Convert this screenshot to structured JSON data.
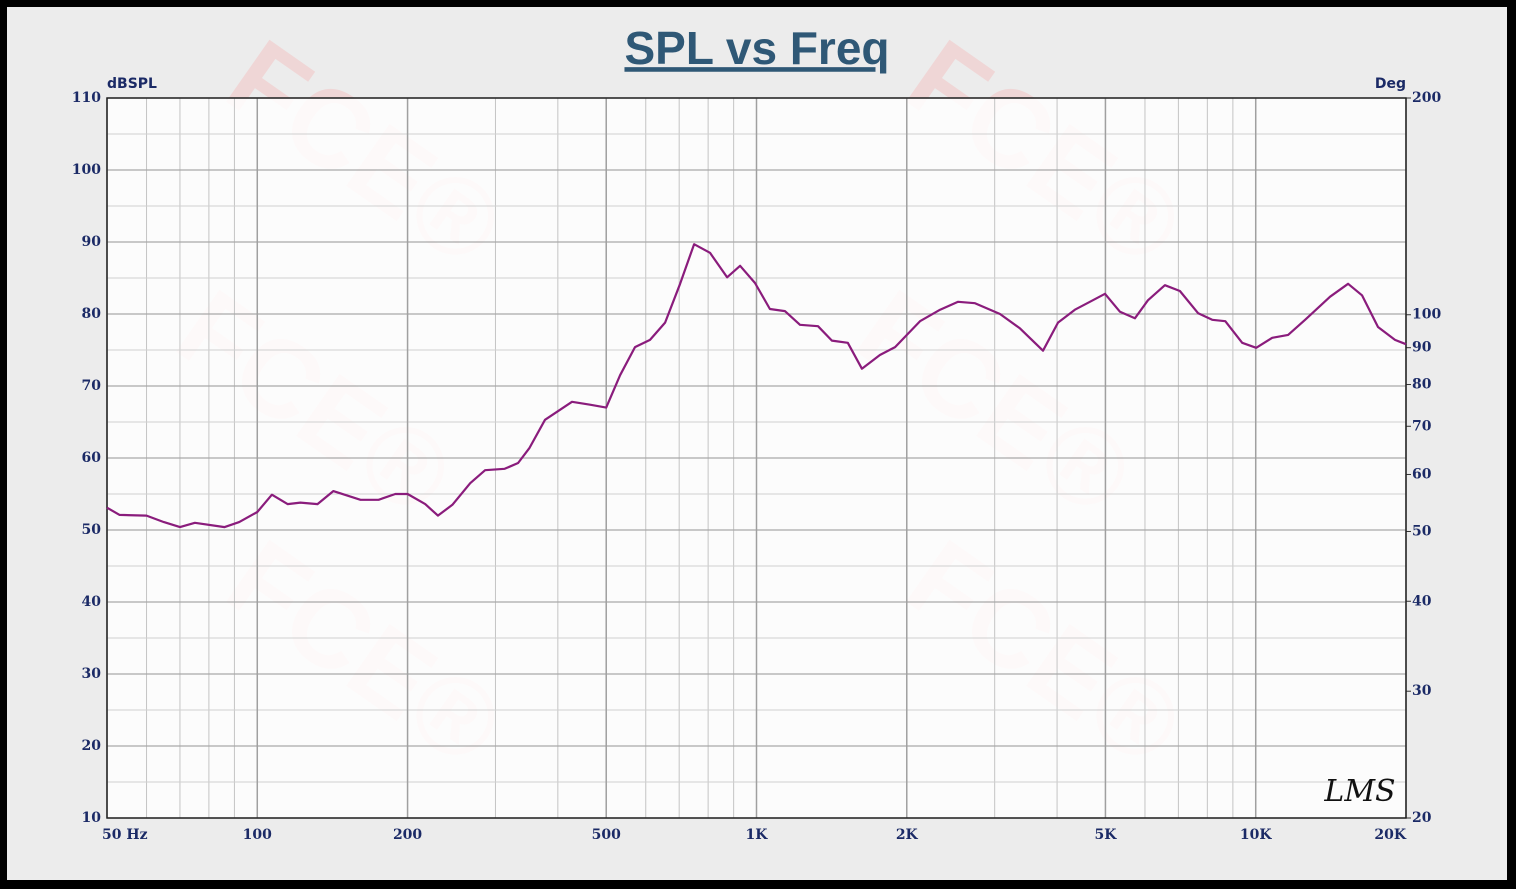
{
  "chart_data": {
    "type": "line",
    "title": "SPL vs Freq",
    "y_label": "dBSPL",
    "y2_label": "Deg",
    "annotation": "LMS",
    "watermark": "FCE®",
    "xlog": true,
    "y2log": true,
    "grid": true,
    "minor_grid": true,
    "xlim": [
      50,
      20000
    ],
    "ylim": [
      10,
      110
    ],
    "y2lim": [
      20,
      200
    ],
    "xticks": [
      {
        "value": 50,
        "label": "50  Hz"
      },
      100,
      200,
      500,
      {
        "value": 1000,
        "label": "1K"
      },
      {
        "value": 2000,
        "label": "2K"
      },
      {
        "value": 5000,
        "label": "5K"
      },
      {
        "value": 10000,
        "label": "10K"
      },
      {
        "value": 20000,
        "label": "20K"
      }
    ],
    "yticks": [
      10,
      20,
      30,
      40,
      50,
      60,
      70,
      80,
      90,
      100,
      110
    ],
    "y2ticks": [
      20,
      30,
      40,
      50,
      60,
      70,
      80,
      90,
      100,
      200
    ],
    "x": [
      50,
      53,
      60,
      65,
      70,
      75,
      86,
      92,
      100,
      107,
      115,
      122,
      132,
      142,
      161,
      175,
      189,
      200,
      217,
      230,
      246,
      267,
      286,
      313,
      333,
      351,
      377,
      427,
      464,
      500,
      533,
      571,
      612,
      656,
      703,
      750,
      807,
      873,
      927,
      993,
      1064,
      1140,
      1222,
      1328,
      1416,
      1524,
      1626,
      1767,
      1895,
      2126,
      2332,
      2534,
      2740,
      3075,
      3372,
      3749,
      4018,
      4344,
      4655,
      4990,
      5347,
      5729,
      6082,
      6577,
      7048,
      7671,
      8182,
      8690,
      9396,
      10022,
      10790,
      11612,
      12560,
      14090,
      15310,
      16330,
      17580,
      19010,
      20000
    ],
    "series": [
      {
        "color": "#8a1c7c",
        "values": [
          53.1,
          52.1,
          52,
          51.1,
          50.4,
          51,
          50.4,
          51.1,
          52.5,
          54.9,
          53.6,
          53.8,
          53.6,
          55.4,
          54.2,
          54.2,
          55,
          55,
          53.6,
          52,
          53.5,
          56.5,
          58.3,
          58.5,
          59.3,
          61.4,
          65.3,
          67.8,
          67.4,
          67,
          71.5,
          75.4,
          76.4,
          78.8,
          84.2,
          89.7,
          88.5,
          85.1,
          86.7,
          84.3,
          80.7,
          80.4,
          78.5,
          78.3,
          76.3,
          76,
          72.4,
          74.3,
          75.4,
          79,
          80.6,
          81.7,
          81.5,
          80,
          78,
          74.9,
          78.8,
          80.6,
          81.7,
          82.8,
          80.3,
          79.4,
          81.9,
          84,
          83.2,
          80.1,
          79.2,
          79,
          76,
          75.3,
          76.7,
          77.1,
          79.2,
          82.4,
          84.2,
          82.6,
          78.2,
          76.4,
          75.8
        ]
      }
    ]
  }
}
